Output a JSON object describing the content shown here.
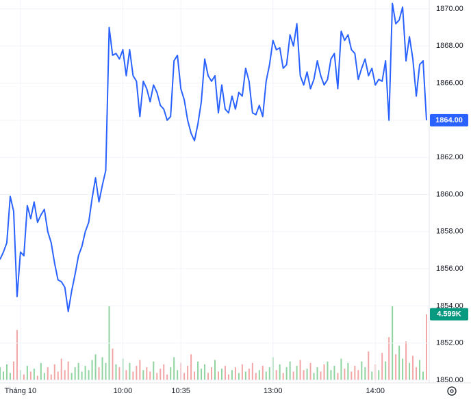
{
  "chart_data": {
    "type": "line",
    "categories": [
      null,
      null,
      null,
      null,
      null,
      null,
      "Tháng 10",
      null,
      null,
      null,
      null,
      null,
      null,
      null,
      null,
      null,
      null,
      null,
      null,
      null,
      null,
      null,
      null,
      null,
      null,
      null,
      null,
      null,
      null,
      null,
      null,
      null,
      null,
      null,
      null,
      null,
      "10:00",
      null,
      null,
      null,
      null,
      null,
      null,
      null,
      null,
      null,
      null,
      null,
      null,
      null,
      null,
      null,
      null,
      "10:35",
      null,
      null,
      null,
      null,
      null,
      null,
      null,
      null,
      null,
      null,
      null,
      null,
      null,
      null,
      null,
      null,
      null,
      null,
      null,
      null,
      null,
      null,
      null,
      null,
      null,
      null,
      "13:00",
      null,
      null,
      null,
      null,
      null,
      null,
      null,
      null,
      null,
      null,
      null,
      null,
      null,
      null,
      null,
      null,
      null,
      null,
      null,
      null,
      null,
      null,
      null,
      null,
      null,
      null,
      null,
      null,
      null,
      "14:00",
      null,
      null,
      null,
      null,
      null,
      null,
      null,
      null,
      null,
      null,
      null,
      null,
      null,
      null,
      null
    ],
    "series": [
      {
        "color": "#2962ff",
        "label_color": "#2962ff",
        "values": [
          1856.5,
          1856.9,
          1857.4,
          1859.9,
          1859.1,
          1854.5,
          1856.9,
          1856.7,
          1859.4,
          1858.7,
          1859.6,
          1858.5,
          1858.9,
          1859.2,
          1858.0,
          1857.4,
          1856.3,
          1855.4,
          1855.3,
          1855.0,
          1853.7,
          1854.8,
          1855.7,
          1856.7,
          1857.2,
          1858.0,
          1858.5,
          1859.8,
          1860.9,
          1859.6,
          1860.5,
          1861.3,
          1869.0,
          1867.5,
          1867.6,
          1867.3,
          1867.8,
          1866.4,
          1867.8,
          1866.4,
          1866.1,
          1864.2,
          1866.1,
          1865.7,
          1865.0,
          1865.9,
          1865.5,
          1864.8,
          1864.6,
          1864.0,
          1864.2,
          1867.2,
          1867.5,
          1865.7,
          1865.1,
          1864.0,
          1863.3,
          1862.9,
          1863.8,
          1865.0,
          1867.3,
          1866.4,
          1866.1,
          1866.4,
          1864.4,
          1865.9,
          1864.6,
          1864.4,
          1865.3,
          1864.6,
          1865.5,
          1865.3,
          1866.8,
          1866.1,
          1864.4,
          1864.3,
          1864.8,
          1864.2,
          1866.1,
          1867.0,
          1868.3,
          1867.8,
          1867.9,
          1866.8,
          1867.0,
          1868.6,
          1868.0,
          1869.2,
          1866.4,
          1865.9,
          1866.6,
          1865.7,
          1866.2,
          1867.2,
          1866.4,
          1865.9,
          1866.2,
          1867.3,
          1867.6,
          1865.7,
          1868.8,
          1868.3,
          1868.6,
          1867.8,
          1867.6,
          1866.2,
          1866.8,
          1867.3,
          1866.4,
          1866.8,
          1865.9,
          1866.2,
          1866.1,
          1867.2,
          1864.0,
          1870.3,
          1869.2,
          1869.4,
          1870.1,
          1867.2,
          1868.5,
          1867.3,
          1865.3,
          1867.0,
          1867.2,
          1864.0
        ],
        "value_labels": [
          null,
          null,
          null,
          null,
          null,
          null,
          null,
          null,
          null,
          null,
          null,
          null,
          null,
          null,
          null,
          null,
          null,
          null,
          null,
          null,
          null,
          null,
          null,
          null,
          null,
          null,
          null,
          null,
          null,
          null,
          null,
          null,
          null,
          null,
          null,
          null,
          null,
          null,
          null,
          null,
          null,
          null,
          null,
          null,
          null,
          null,
          null,
          null,
          null,
          null,
          null,
          null,
          null,
          null,
          null,
          null,
          null,
          null,
          null,
          null,
          null,
          null,
          null,
          null,
          null,
          null,
          null,
          null,
          null,
          null,
          null,
          null,
          null,
          null,
          null,
          null,
          null,
          null,
          null,
          null,
          null,
          null,
          null,
          null,
          null,
          null,
          null,
          null,
          null,
          null,
          null,
          null,
          null,
          null,
          null,
          null,
          null,
          null,
          null,
          null,
          null,
          null,
          null,
          null,
          null,
          null,
          null,
          null,
          null,
          null,
          null,
          null,
          null,
          null,
          null,
          null,
          null,
          null,
          null,
          null,
          null,
          null,
          null,
          null,
          null,
          "1864.00"
        ]
      },
      {
        "type": "volume",
        "up_color": "#8fd3a0",
        "down_color": "#f2a5a5",
        "label_color": "#089981",
        "values": [
          900,
          600,
          1100,
          500,
          1300,
          3500,
          700,
          400,
          1000,
          600,
          800,
          300,
          1200,
          500,
          900,
          400,
          1100,
          600,
          1500,
          700,
          1300,
          500,
          900,
          1200,
          600,
          1000,
          700,
          1400,
          1800,
          900,
          1600,
          1200,
          5200,
          2200,
          1100,
          900,
          1500,
          700,
          1200,
          600,
          1000,
          1400,
          700,
          900,
          600,
          1300,
          500,
          800,
          1100,
          400,
          900,
          1600,
          700,
          1200,
          500,
          1000,
          1800,
          600,
          1300,
          800,
          1100,
          500,
          900,
          1400,
          600,
          800,
          1000,
          400,
          700,
          900,
          500,
          1100,
          600,
          800,
          1200,
          500,
          700,
          1000,
          600,
          900,
          1600,
          700,
          1100,
          500,
          900,
          1300,
          600,
          1000,
          1400,
          700,
          800,
          1200,
          500,
          900,
          600,
          1100,
          1300,
          700,
          1000,
          500,
          1500,
          800,
          1200,
          600,
          1000,
          700,
          1300,
          900,
          2000,
          600,
          1100,
          700,
          1900,
          1300,
          3000,
          5200,
          1800,
          2400,
          1500,
          2700,
          1200,
          1700,
          900,
          1400,
          600,
          4599
        ],
        "value_labels": [
          null,
          null,
          null,
          null,
          null,
          null,
          null,
          null,
          null,
          null,
          null,
          null,
          null,
          null,
          null,
          null,
          null,
          null,
          null,
          null,
          null,
          null,
          null,
          null,
          null,
          null,
          null,
          null,
          null,
          null,
          null,
          null,
          null,
          null,
          null,
          null,
          null,
          null,
          null,
          null,
          null,
          null,
          null,
          null,
          null,
          null,
          null,
          null,
          null,
          null,
          null,
          null,
          null,
          null,
          null,
          null,
          null,
          null,
          null,
          null,
          null,
          null,
          null,
          null,
          null,
          null,
          null,
          null,
          null,
          null,
          null,
          null,
          null,
          null,
          null,
          null,
          null,
          null,
          null,
          null,
          null,
          null,
          null,
          null,
          null,
          null,
          null,
          null,
          null,
          null,
          null,
          null,
          null,
          null,
          null,
          null,
          null,
          null,
          null,
          null,
          null,
          null,
          null,
          null,
          null,
          null,
          null,
          null,
          null,
          null,
          null,
          null,
          null,
          null,
          null,
          null,
          null,
          null,
          null,
          null,
          null,
          null,
          null,
          null,
          null,
          "4.599K"
        ]
      }
    ],
    "ylim": [
      1850,
      1870
    ],
    "yticks": [
      {
        "value": 1850,
        "label": "1850.00"
      },
      {
        "value": 1852,
        "label": "1852.00"
      },
      {
        "value": 1854,
        "label": "1854.00"
      },
      {
        "value": 1856,
        "label": "1856.00"
      },
      {
        "value": 1858,
        "label": "1858.00"
      },
      {
        "value": 1860,
        "label": "1860.00"
      },
      {
        "value": 1862,
        "label": "1862.00"
      },
      {
        "value": 1864,
        "label": "1864.00"
      },
      {
        "value": 1866,
        "label": "1866.00"
      },
      {
        "value": 1868,
        "label": "1868.00"
      },
      {
        "value": 1870,
        "label": "1870.00"
      }
    ],
    "grid": true
  }
}
